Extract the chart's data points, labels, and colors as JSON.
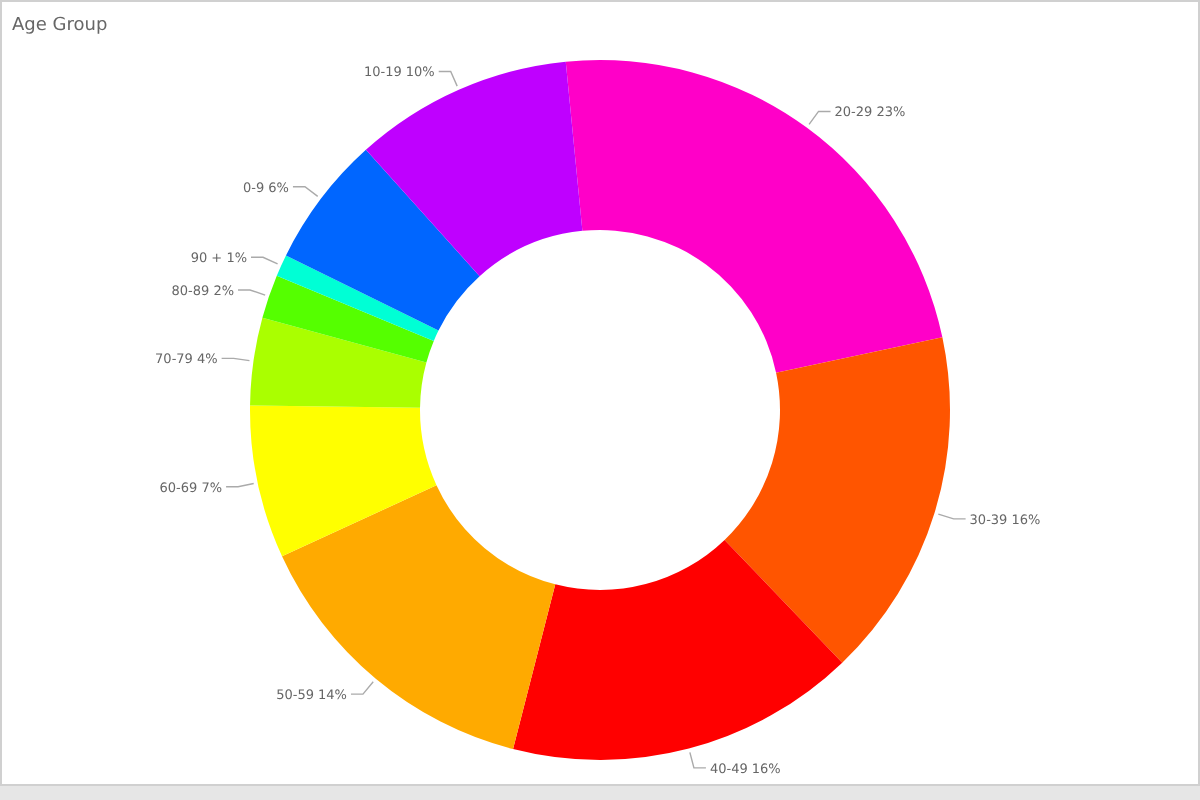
{
  "chart_data": {
    "type": "donut",
    "title": "Age Group",
    "categories": [
      "20-29",
      "30-39",
      "40-49",
      "50-59",
      "60-69",
      "70-79",
      "80-89",
      "90 +",
      "0-9",
      "10-19"
    ],
    "values": [
      23,
      16,
      16,
      14,
      7,
      4,
      2,
      1,
      6,
      10
    ],
    "value_labels": [
      "23%",
      "16%",
      "16%",
      "14%",
      "7%",
      "4%",
      "2%",
      "1%",
      "6%",
      "10%"
    ],
    "colors": [
      "#ff00c8",
      "#ff5500",
      "#ff0000",
      "#ffaa00",
      "#ffff00",
      "#aaff00",
      "#55ff00",
      "#00ffd5",
      "#0066ff",
      "#bf00ff"
    ],
    "legend": false
  }
}
